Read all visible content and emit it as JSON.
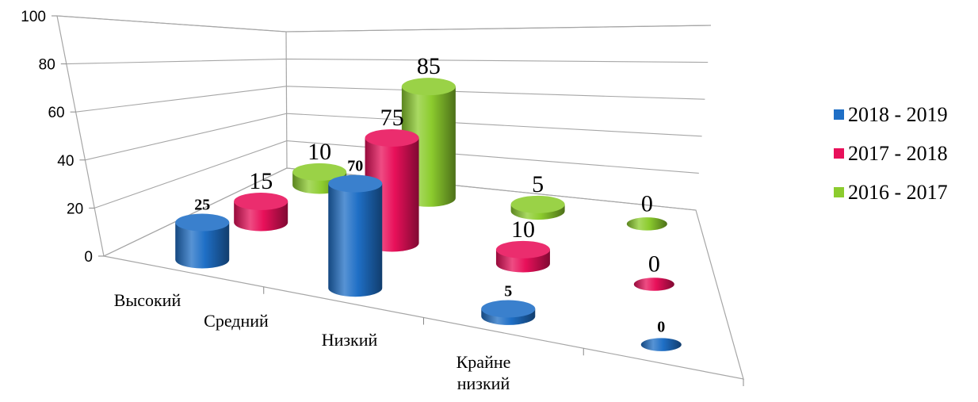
{
  "chart_data": {
    "type": "bar",
    "style": "3d-cylinder",
    "categories": [
      "Высокий",
      "Средний",
      "Низкий",
      "Крайне низкий"
    ],
    "series": [
      {
        "name": "2018 - 2019",
        "values": [
          25,
          70,
          5,
          0
        ],
        "color": "#1f6fc6",
        "label_style": "bold"
      },
      {
        "name": "2017 - 2018",
        "values": [
          15,
          75,
          10,
          0
        ],
        "color": "#e8105a",
        "label_style": "normal"
      },
      {
        "name": "2016 - 2017",
        "values": [
          10,
          85,
          5,
          0
        ],
        "color": "#8ccc2e",
        "label_style": "normal"
      }
    ],
    "y_ticks": [
      "0",
      "20",
      "40",
      "60",
      "80",
      "100"
    ],
    "ylim": [
      0,
      100
    ],
    "legend_position": "right",
    "grid": true
  }
}
